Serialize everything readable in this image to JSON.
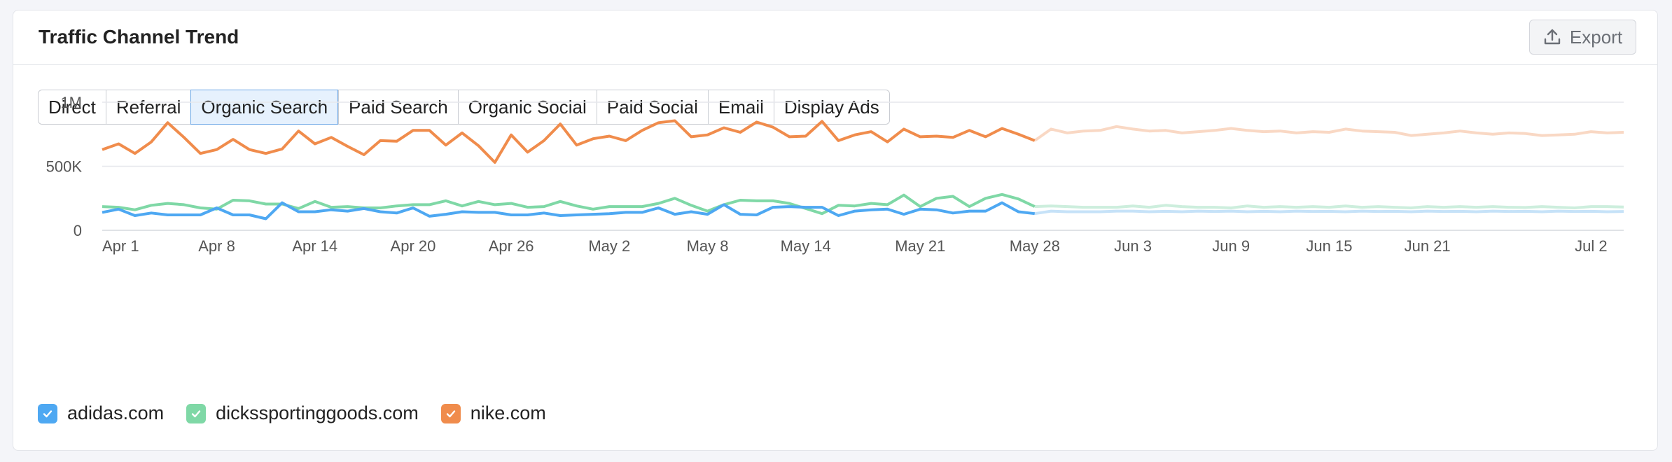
{
  "header": {
    "title": "Traffic Channel Trend",
    "export_label": "Export",
    "export_icon": "upload-icon"
  },
  "tabs": [
    {
      "label": "Direct",
      "active": false
    },
    {
      "label": "Referral",
      "active": false
    },
    {
      "label": "Organic Search",
      "active": true
    },
    {
      "label": "Paid Search",
      "active": false
    },
    {
      "label": "Organic Social",
      "active": false
    },
    {
      "label": "Paid Social",
      "active": false
    },
    {
      "label": "Email",
      "active": false
    },
    {
      "label": "Display Ads",
      "active": false
    }
  ],
  "legend": [
    {
      "label": "adidas.com",
      "color": "#4ea8f2",
      "checked": true
    },
    {
      "label": "dickssportinggoods.com",
      "color": "#7fd8a6",
      "checked": true
    },
    {
      "label": "nike.com",
      "color": "#f08c4c",
      "checked": true
    }
  ],
  "chart_data": {
    "type": "line",
    "x_start": "Apr 1",
    "x_end": "Jul 2",
    "forecast_from": "May 28",
    "xticks": [
      "Apr 1",
      "Apr 8",
      "Apr 14",
      "Apr 20",
      "Apr 26",
      "May 2",
      "May 8",
      "May 14",
      "May 21",
      "May 28",
      "Jun 3",
      "Jun 9",
      "Jun 15",
      "Jun 21",
      "Jul 2"
    ],
    "yticks": [
      "0",
      "500K",
      "1M"
    ],
    "ylim": [
      0,
      1000000
    ],
    "grid": true,
    "legend_position": "bottom-left",
    "series": [
      {
        "name": "nike.com",
        "color": "#f08c4c",
        "forecast_color": "#f9d8c4",
        "values": [
          630000,
          675000,
          600000,
          690000,
          840000,
          725000,
          600000,
          630000,
          710000,
          630000,
          600000,
          635000,
          775000,
          675000,
          725000,
          655000,
          590000,
          700000,
          695000,
          780000,
          780000,
          665000,
          760000,
          660000,
          530000,
          745000,
          610000,
          700000,
          830000,
          665000,
          715000,
          735000,
          700000,
          780000,
          840000,
          855000,
          730000,
          745000,
          800000,
          765000,
          845000,
          805000,
          730000,
          735000,
          850000,
          700000,
          745000,
          770000,
          690000,
          790000,
          730000,
          735000,
          725000,
          780000,
          730000,
          795000,
          750000,
          700000,
          790000,
          760000,
          775000,
          780000,
          810000,
          790000,
          775000,
          780000,
          760000,
          770000,
          780000,
          795000,
          780000,
          770000,
          775000,
          760000,
          770000,
          765000,
          790000,
          775000,
          770000,
          765000,
          740000,
          750000,
          760000,
          775000,
          760000,
          750000,
          760000,
          755000,
          740000,
          745000,
          750000,
          770000,
          760000,
          765000
        ],
        "forecast_start_index": 57
      },
      {
        "name": "dickssportinggoods.com",
        "color": "#7fd8a6",
        "forecast_color": "#cdeedd",
        "values": [
          185000,
          180000,
          160000,
          195000,
          210000,
          200000,
          175000,
          165000,
          235000,
          230000,
          205000,
          205000,
          170000,
          225000,
          180000,
          185000,
          175000,
          175000,
          190000,
          200000,
          200000,
          230000,
          190000,
          225000,
          200000,
          210000,
          180000,
          185000,
          225000,
          190000,
          165000,
          185000,
          185000,
          185000,
          210000,
          250000,
          195000,
          150000,
          200000,
          235000,
          230000,
          230000,
          210000,
          170000,
          130000,
          195000,
          190000,
          210000,
          200000,
          275000,
          185000,
          250000,
          265000,
          185000,
          250000,
          280000,
          245000,
          185000,
          190000,
          185000,
          180000,
          180000,
          180000,
          190000,
          180000,
          195000,
          185000,
          180000,
          180000,
          175000,
          190000,
          180000,
          185000,
          180000,
          185000,
          180000,
          190000,
          180000,
          185000,
          180000,
          175000,
          185000,
          180000,
          185000,
          180000,
          185000,
          180000,
          178000,
          185000,
          180000,
          175000,
          185000,
          185000,
          182000
        ],
        "forecast_start_index": 57
      },
      {
        "name": "adidas.com",
        "color": "#4ea8f2",
        "forecast_color": "#c6e2f8",
        "values": [
          140000,
          165000,
          115000,
          135000,
          120000,
          120000,
          120000,
          175000,
          120000,
          120000,
          90000,
          215000,
          145000,
          145000,
          160000,
          150000,
          170000,
          145000,
          135000,
          175000,
          110000,
          125000,
          145000,
          140000,
          140000,
          120000,
          120000,
          135000,
          115000,
          120000,
          125000,
          130000,
          140000,
          140000,
          175000,
          125000,
          145000,
          125000,
          200000,
          125000,
          120000,
          180000,
          185000,
          180000,
          180000,
          115000,
          150000,
          160000,
          165000,
          125000,
          165000,
          160000,
          135000,
          150000,
          150000,
          215000,
          145000,
          130000,
          150000,
          145000,
          145000,
          145000,
          150000,
          150000,
          145000,
          148000,
          145000,
          150000,
          147000,
          150000,
          145000,
          148000,
          145000,
          150000,
          147000,
          148000,
          145000,
          150000,
          147000,
          148000,
          145000,
          150000,
          147000,
          148000,
          145000,
          150000,
          147000,
          148000,
          145000,
          150000,
          147000,
          148000,
          145000,
          147000
        ],
        "forecast_start_index": 57
      }
    ]
  }
}
